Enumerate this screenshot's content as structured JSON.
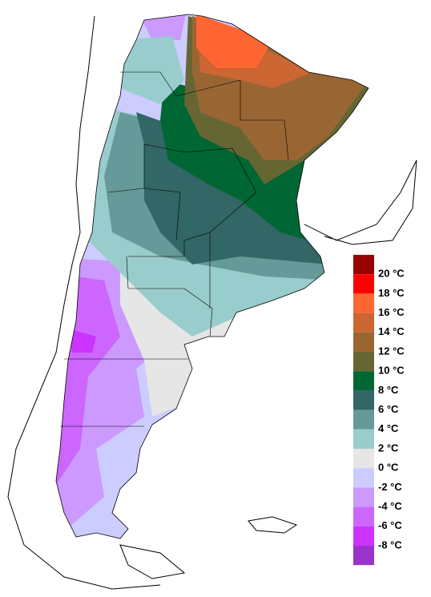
{
  "legend": {
    "labels": [
      "20 °C",
      "18 °C",
      "16 °C",
      "14 °C",
      "12 °C",
      "10 °C",
      "8 °C",
      "6 °C",
      "4 °C",
      "2 °C",
      "0 °C",
      "-2 °C",
      "-4 °C",
      "-6 °C",
      "-8 °C"
    ],
    "swatch_colors": [
      "#990000",
      "#ff0000",
      "#ff6633",
      "#cc6633",
      "#996633",
      "#666633",
      "#006633",
      "#336666",
      "#669999",
      "#99cccc",
      "#e6e6e6",
      "#ccccff",
      "#cc99ff",
      "#cc66ff",
      "#cc33ff",
      "#9933cc"
    ]
  }
}
